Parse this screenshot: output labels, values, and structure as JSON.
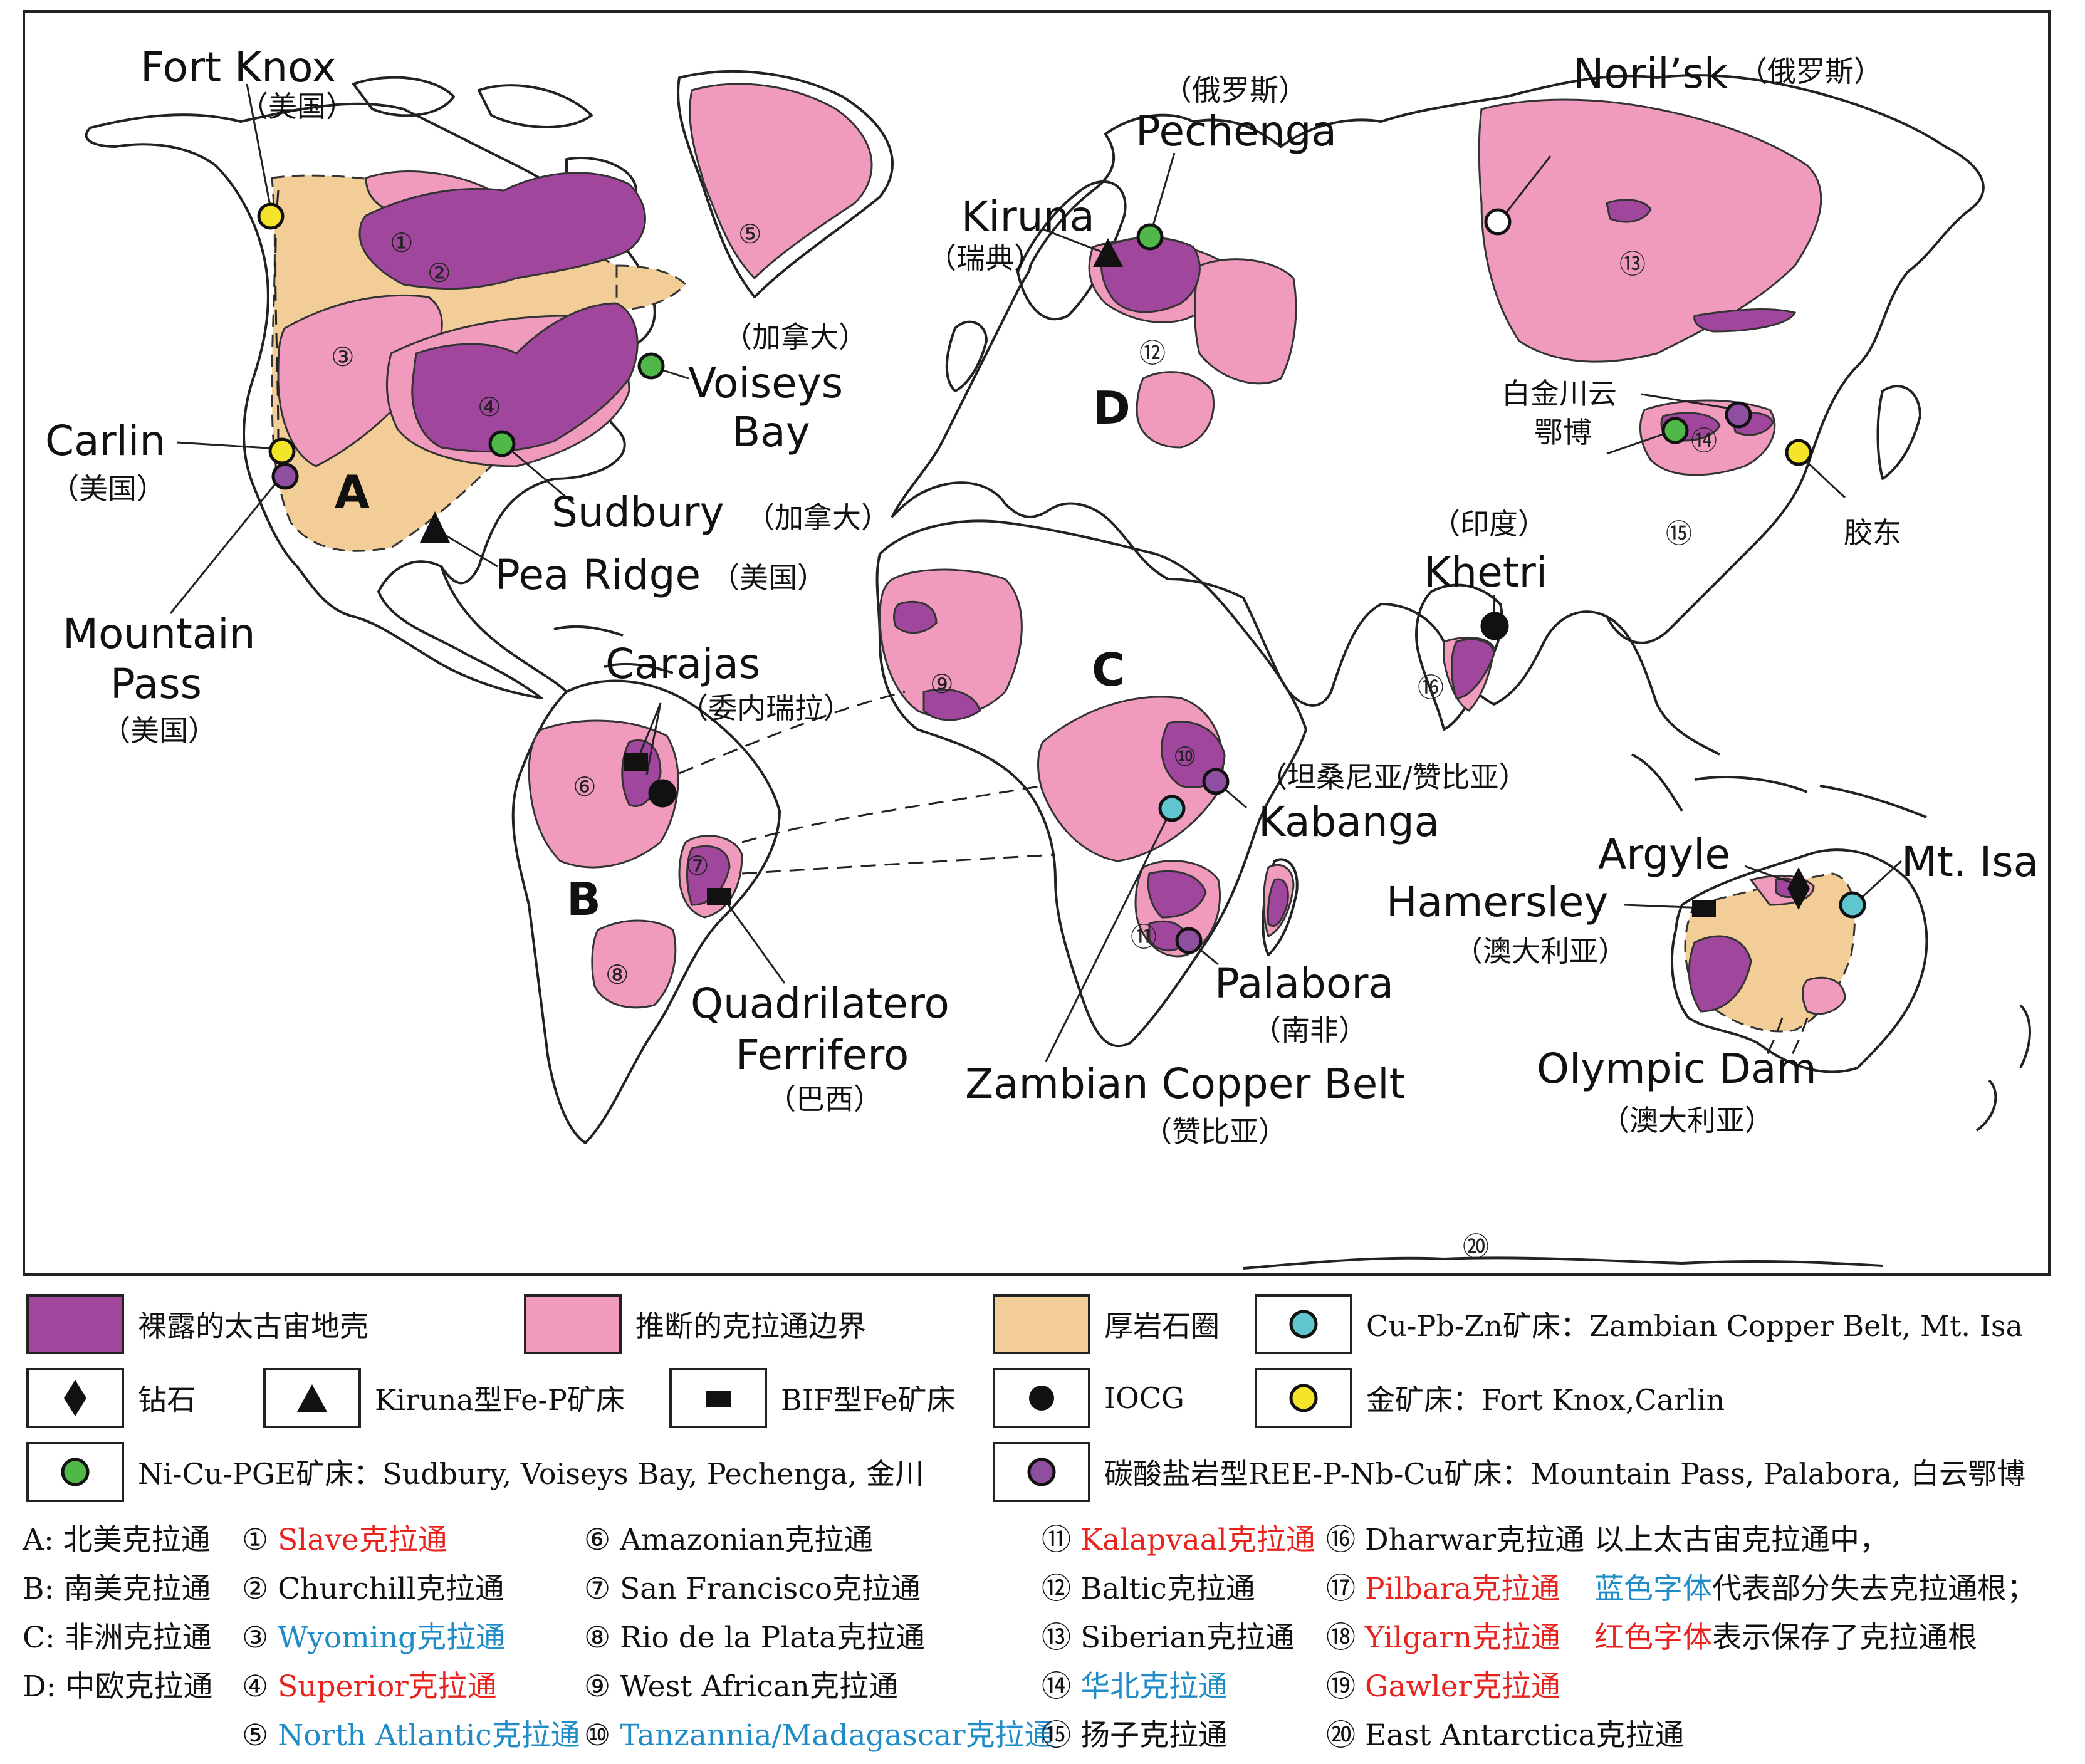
{
  "regions": [
    {
      "letter": "A"
    },
    {
      "letter": "B"
    },
    {
      "letter": "C"
    },
    {
      "letter": "D"
    }
  ],
  "deposits": [
    {
      "id": "fort-knox",
      "name": "Fort Knox",
      "country": "（美国）",
      "type": "gold"
    },
    {
      "id": "carlin",
      "name": "Carlin",
      "country": "（美国）",
      "type": "gold"
    },
    {
      "id": "mountain-pass",
      "name": "Mountain Pass",
      "country": "（美国）",
      "type": "carbonatite"
    },
    {
      "id": "voiseys-bay",
      "name_line1": "Voiseys",
      "name_line2": "Bay",
      "country": "（加拿大）",
      "type": "ni-cu-pge"
    },
    {
      "id": "sudbury",
      "name": "Sudbury",
      "country": "（加拿大）",
      "type": "ni-cu-pge"
    },
    {
      "id": "pea-ridge",
      "name": "Pea Ridge",
      "country": "（美国）",
      "type": "kiruna"
    },
    {
      "id": "carajas",
      "name": "Carajas",
      "country": "（委内瑞拉）",
      "type": "iocg"
    },
    {
      "id": "quadrilatero",
      "name_line1": "Quadrilatero",
      "name_line2": "Ferrifero",
      "country": "（巴西）",
      "type": "bif"
    },
    {
      "id": "kiruna",
      "name": "Kiruna",
      "country": "（瑞典）",
      "type": "kiruna"
    },
    {
      "id": "pechenga",
      "name": "Pechenga",
      "country": "（俄罗斯）",
      "type": "ni-cu-pge"
    },
    {
      "id": "norilsk",
      "name": "Noril’sk",
      "country": "（俄罗斯）",
      "type": "ni-cu-pge-open"
    },
    {
      "id": "jinchuan-baiyun",
      "name_line1": "白金川云",
      "name_line2": "鄂博",
      "type": "mixed"
    },
    {
      "id": "jiaodong",
      "name": "胶东",
      "type": "gold"
    },
    {
      "id": "khetri",
      "name": "Khetri",
      "country": "（印度）",
      "type": "iocg"
    },
    {
      "id": "kabanga",
      "name": "Kabanga",
      "country": "（坦桑尼亚/赞比亚）",
      "type": "carbonatite"
    },
    {
      "id": "palabora",
      "name": "Palabora",
      "country": "（南非）",
      "type": "carbonatite"
    },
    {
      "id": "zambian",
      "name": "Zambian Copper Belt",
      "country": "（赞比亚）",
      "type": "cu-pb-zn"
    },
    {
      "id": "argyle",
      "name": "Argyle",
      "type": "diamond"
    },
    {
      "id": "hamersley",
      "name": "Hamersley",
      "country": "（澳大利亚）",
      "type": "bif"
    },
    {
      "id": "mt-isa",
      "name": "Mt. Isa",
      "type": "cu-pb-zn"
    },
    {
      "id": "olympic-dam",
      "name": "Olympic Dam",
      "country": "（澳大利亚）",
      "type": "iocg"
    }
  ],
  "craton_numbers": [
    "①",
    "②",
    "③",
    "④",
    "⑤",
    "⑥",
    "⑦",
    "⑧",
    "⑨",
    "⑩",
    "⑪",
    "⑫",
    "⑬",
    "⑭",
    "⑮",
    "⑯",
    "⑳"
  ],
  "legend": [
    {
      "key": "archean",
      "label": "裸露的太古宙地壳",
      "color": "#a1469d"
    },
    {
      "key": "inferred",
      "label": "推断的克拉通边界",
      "color": "#f09bbe"
    },
    {
      "key": "lithosphere",
      "label": "厚岩石圈",
      "color": "#f2cd98"
    },
    {
      "key": "cu-pb-zn",
      "label": "Cu-Pb-Zn矿床：Zambian Copper Belt, Mt. Isa",
      "color": "#5fc6d0"
    },
    {
      "key": "diamond",
      "label": "钻石"
    },
    {
      "key": "kiruna",
      "label": "Kiruna型Fe-P矿床"
    },
    {
      "key": "bif",
      "label": "BIF型Fe矿床"
    },
    {
      "key": "iocg",
      "label": "IOCG"
    },
    {
      "key": "gold",
      "label": "金矿床：Fort Knox,Carlin",
      "color": "#f4e52a"
    },
    {
      "key": "ni-cu-pge",
      "label": "Ni-Cu-PGE矿床：Sudbury, Voiseys Bay, Pechenga, 金川",
      "color": "#4fb848"
    },
    {
      "key": "carbonatite",
      "label": "碳酸盐岩型REE-P-Nb-Cu矿床：Mountain Pass, Palabora, 白云鄂博",
      "color": "#8e4fa0"
    }
  ],
  "cratons_list": {
    "col1": [
      "A: 北美克拉通",
      "B: 南美克拉通",
      "C: 非洲克拉通",
      "D: 中欧克拉通"
    ],
    "col2": [
      {
        "num": "①",
        "name": "Slave克拉通",
        "color": "red"
      },
      {
        "num": "②",
        "name": "Churchill克拉通",
        "color": "black"
      },
      {
        "num": "③",
        "name": "Wyoming克拉通",
        "color": "blue"
      },
      {
        "num": "④",
        "name": "Superior克拉通",
        "color": "red"
      },
      {
        "num": "⑤",
        "name": "North Atlantic克拉通",
        "color": "blue"
      }
    ],
    "col3": [
      {
        "num": "⑥",
        "name": "Amazonian克拉通",
        "color": "black"
      },
      {
        "num": "⑦",
        "name": "San Francisco克拉通",
        "color": "black"
      },
      {
        "num": "⑧",
        "name": "Rio de la Plata克拉通",
        "color": "black"
      },
      {
        "num": "⑨",
        "name": "West African克拉通",
        "color": "black"
      },
      {
        "num": "⑩",
        "name": "Tanzannia/Madagascar克拉通",
        "color": "blue"
      }
    ],
    "col4": [
      {
        "num": "⑪",
        "name": "Kalapvaal克拉通",
        "color": "red"
      },
      {
        "num": "⑫",
        "name": "Baltic克拉通",
        "color": "black"
      },
      {
        "num": "⑬",
        "name": "Siberian克拉通",
        "color": "black"
      },
      {
        "num": "⑭",
        "name": "华北克拉通",
        "color": "blue"
      },
      {
        "num": "⑮",
        "name": "扬子克拉通",
        "color": "black"
      }
    ],
    "col5": [
      {
        "num": "⑯",
        "name": "Dharwar克拉通",
        "color": "black"
      },
      {
        "num": "⑰",
        "name": "Pilbara克拉通",
        "color": "red"
      },
      {
        "num": "⑱",
        "name": "Yilgarn克拉通",
        "color": "red"
      },
      {
        "num": "⑲",
        "name": "Gawler克拉通",
        "color": "red"
      },
      {
        "num": "⑳",
        "name": "East Antarctica克拉通",
        "color": "black"
      }
    ],
    "note_line1": "以上太古宙克拉通中，",
    "note_line2_blue": "蓝色字体",
    "note_line2_rest": "代表部分失去克拉通根；",
    "note_line3_red": "红色字体",
    "note_line3_rest": "表示保存了克拉通根"
  }
}
